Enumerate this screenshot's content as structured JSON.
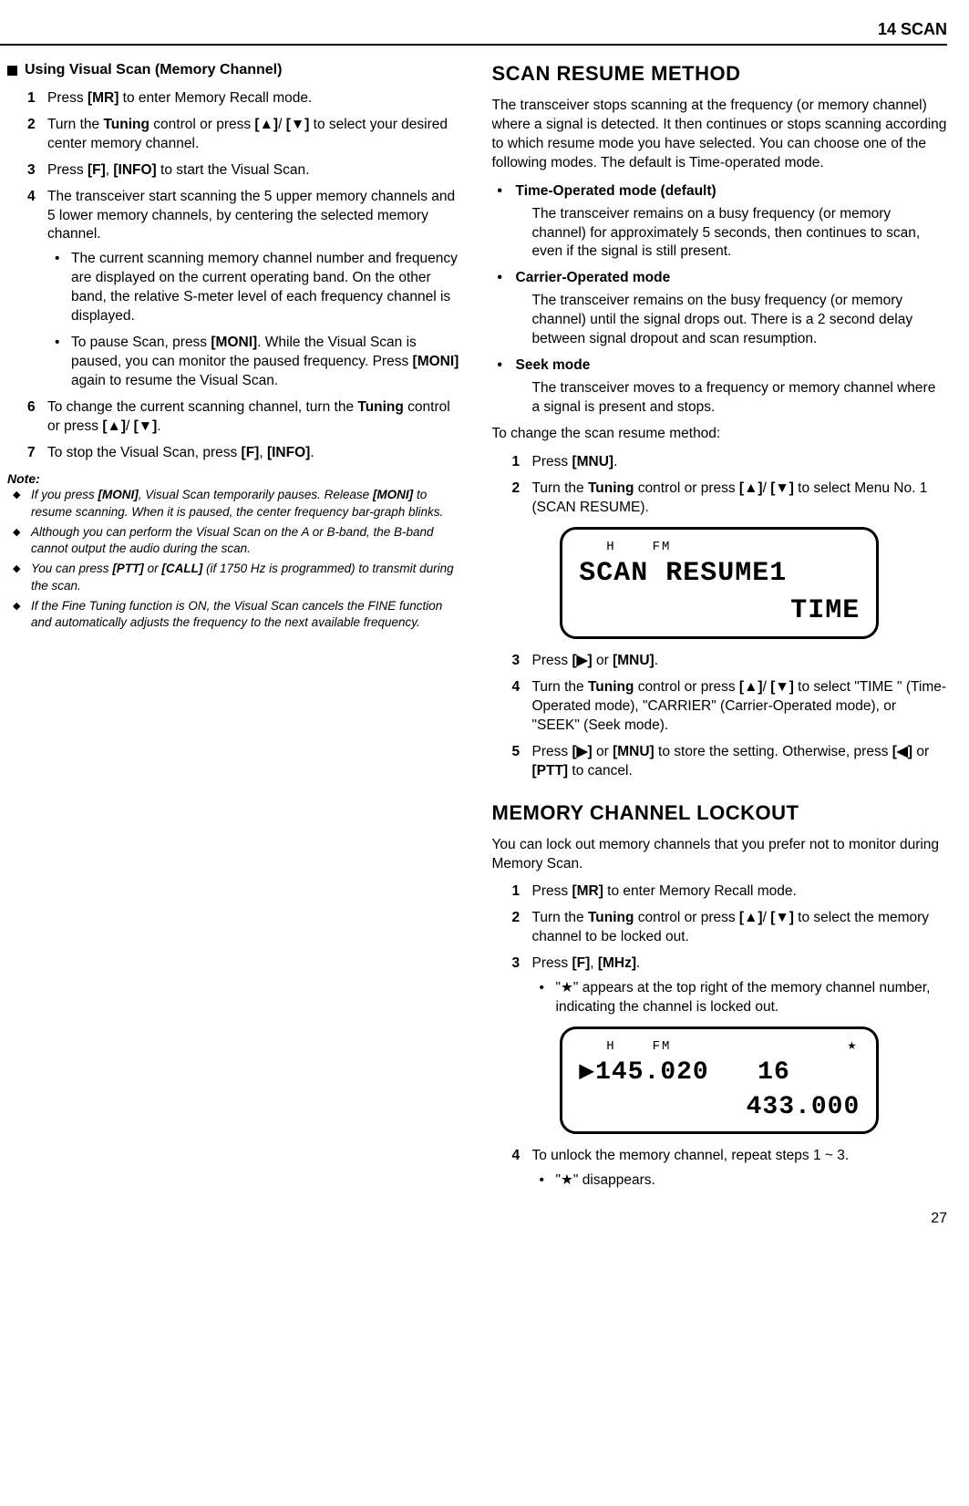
{
  "header": {
    "chapter": "14  SCAN"
  },
  "left": {
    "subheading": "Using Visual Scan (Memory Channel)",
    "steps": [
      {
        "n": "1",
        "html": "Press <b>[MR]</b> to enter Memory Recall mode."
      },
      {
        "n": "2",
        "html": "Turn the <b>Tuning</b> control or press <b>[▲]</b>/ <b>[▼]</b> to select your desired center memory channel."
      },
      {
        "n": "3",
        "html": "Press <b>[F]</b>, <b>[INFO]</b> to start the Visual Scan."
      },
      {
        "n": "4",
        "html": "The transceiver start scanning the 5 upper memory channels and 5 lower memory channels, by centering the selected memory channel.",
        "bullets": [
          "The current scanning memory channel number and frequency are displayed on the current operating band.  On the other band, the relative S-meter level of each frequency channel is displayed.",
          "To pause Scan, press <b>[MONI]</b>.  While the Visual Scan is paused, you can monitor the paused frequency.  Press <b>[MONI]</b> again to resume the Visual Scan."
        ]
      },
      {
        "n": "6",
        "html": "To change the current scanning channel, turn the <b>Tuning</b> control or press <b>[▲]</b>/ <b>[▼]</b>."
      },
      {
        "n": "7",
        "html": "To stop the Visual Scan, press <b>[F]</b>, <b>[INFO]</b>."
      }
    ],
    "note_label": "Note:",
    "notes": [
      "If you press <b>[MONI]</b>, Visual Scan temporarily pauses.  Release <b>[MONI]</b> to resume scanning.  When it is paused, the center frequency bar-graph blinks.",
      "Although you can perform the Visual Scan on the A or B-band, the B-band cannot output the audio during the scan.",
      "You can press <b>[PTT]</b> or <b>[CALL]</b> (if 1750 Hz is programmed) to transmit during the scan.",
      "If the Fine Tuning function is ON, the Visual Scan cancels the FINE function and automatically adjusts the frequency to the next available frequency."
    ]
  },
  "right": {
    "scan_resume": {
      "title": "SCAN RESUME METHOD",
      "intro": "The transceiver stops scanning at the frequency (or memory channel) where a signal is detected.  It then continues or stops scanning according to which resume mode you have selected.  You can choose one of the following modes.  The default is Time-operated mode.",
      "modes": [
        {
          "name": "Time-Operated mode (default)",
          "desc": "The transceiver remains on a busy frequency (or memory channel) for approximately 5 seconds, then continues to scan, even if the signal is still present."
        },
        {
          "name": "Carrier-Operated mode",
          "desc": "The transceiver remains on the busy frequency (or memory channel) until the signal drops out.  There is a 2 second delay between signal dropout and scan resumption."
        },
        {
          "name": "Seek mode",
          "desc": "The transceiver moves to a frequency or memory channel where a signal is present and stops."
        }
      ],
      "change_intro": "To change the scan resume method:",
      "steps1": [
        {
          "n": "1",
          "html": "Press <b>[MNU]</b>."
        },
        {
          "n": "2",
          "html": "Turn the <b>Tuning</b> control or press <b>[▲]</b>/ <b>[▼]</b> to select Menu No. 1 (SCAN RESUME)."
        }
      ],
      "lcd1": {
        "top_h": "H",
        "top_fm": "FM",
        "line1": "SCAN RESUME1",
        "line2": "TIME"
      },
      "steps2": [
        {
          "n": "3",
          "html": "Press <b>[▶]</b> or <b>[MNU]</b>."
        },
        {
          "n": "4",
          "html": "Turn the <b>Tuning</b> control or press <b>[▲]</b>/ <b>[▼]</b> to select \"TIME \" (Time-Operated mode), \"CARRIER\" (Carrier-Operated mode), or \"SEEK\" (Seek mode)."
        },
        {
          "n": "5",
          "html": "Press <b>[▶]</b> or <b>[MNU]</b> to store the setting. Otherwise, press <b>[◀]</b> or <b>[PTT]</b> to cancel."
        }
      ]
    },
    "lockout": {
      "title": "MEMORY CHANNEL LOCKOUT",
      "intro": "You can lock out memory channels that you prefer not to monitor during Memory Scan.",
      "steps1": [
        {
          "n": "1",
          "html": "Press <b>[MR]</b> to enter Memory Recall mode."
        },
        {
          "n": "2",
          "html": "Turn the <b>Tuning</b> control or press <b>[▲]</b>/ <b>[▼]</b> to select the memory channel to be locked out."
        },
        {
          "n": "3",
          "html": "Press <b>[F]</b>, <b>[MHz]</b>.",
          "bullets": [
            "\"★\" appears at the top right of the memory channel number, indicating the channel is locked out."
          ]
        }
      ],
      "lcd2": {
        "top_h": "H",
        "top_fm": "FM",
        "star": "★",
        "line1": "▶145.020   16",
        "line2": "433.000"
      },
      "steps2": [
        {
          "n": "4",
          "html": "To unlock the memory channel, repeat steps 1 ~ 3.",
          "bullets": [
            "\"★\" disappears."
          ]
        }
      ]
    }
  },
  "page_number": "27"
}
